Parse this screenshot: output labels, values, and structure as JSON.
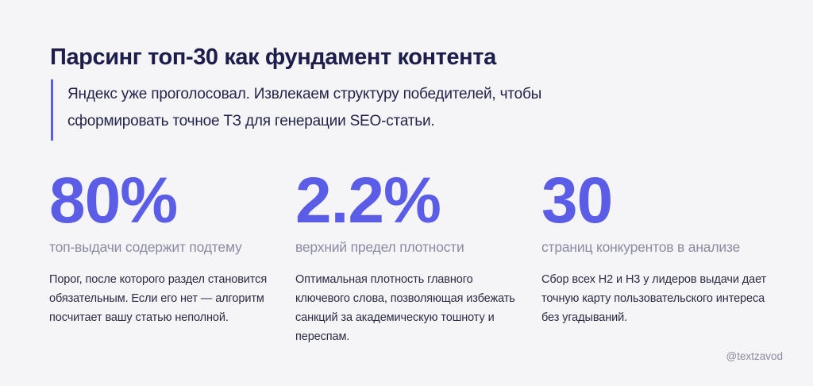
{
  "header": {
    "title": "Парсинг топ-30 как фундамент контента",
    "lead": "Яндекс уже проголосовал. Извлекаем структуру победителей, чтобы сформировать точное ТЗ для генерации SEO-статьи."
  },
  "stats": [
    {
      "value": "80%",
      "caption": "топ-выдачи содержит подтему",
      "description": "Порог, после которого раздел становится обязательным. Если его нет — алгоритм посчитает вашу статью неполной."
    },
    {
      "value": "2.2%",
      "caption": "верхний предел плотности",
      "description": "Оптимальная плотность главного ключевого слова, позволяющая избежать санкций за академическую тошноту и переспам."
    },
    {
      "value": "30",
      "caption": "страниц конкурентов в анализе",
      "description": "Сбор всех H2 и H3 у лидеров выдачи дает точную карту пользовательского интереса без угадываний."
    }
  ],
  "footer": {
    "handle": "@textzavod"
  },
  "colors": {
    "accent": "#5b5de6",
    "title": "#1c1d4a",
    "caption": "#8a8ba3",
    "background": "#f5f5f7"
  }
}
